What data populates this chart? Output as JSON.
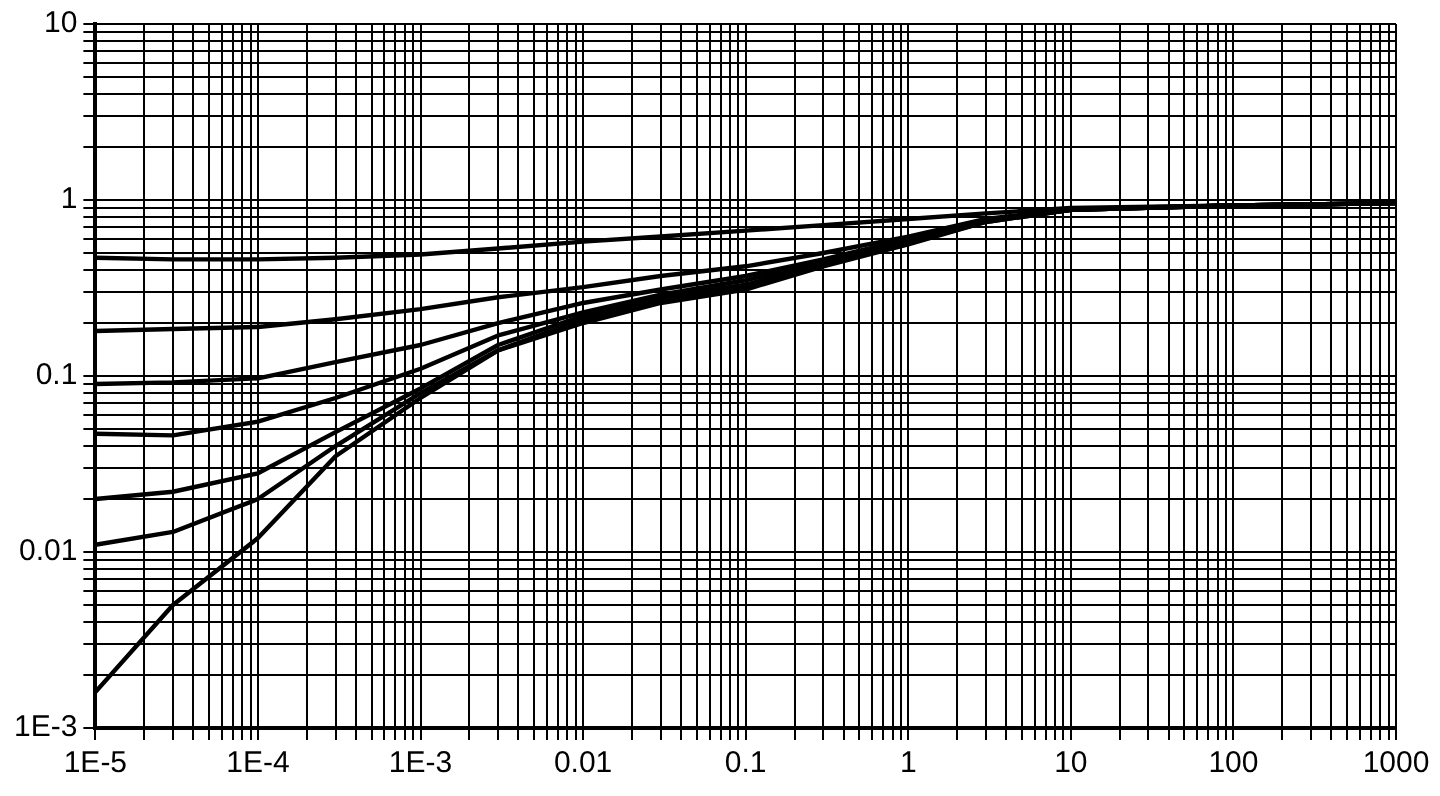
{
  "chart_data": {
    "type": "line",
    "log": "xy",
    "grid": true,
    "legend": false,
    "marker": "none",
    "line_style": "solid",
    "xlim": [
      1e-05,
      1000
    ],
    "ylim": [
      0.001,
      10
    ],
    "xticks": [
      {
        "value": 1e-05,
        "label": "1E-5"
      },
      {
        "value": 2e-05,
        "label": null
      },
      {
        "value": 3e-05,
        "label": null
      },
      {
        "value": 4e-05,
        "label": null
      },
      {
        "value": 5e-05,
        "label": null
      },
      {
        "value": 6e-05,
        "label": null
      },
      {
        "value": 7e-05,
        "label": null
      },
      {
        "value": 8e-05,
        "label": null
      },
      {
        "value": 9e-05,
        "label": null
      },
      {
        "value": 0.0001,
        "label": "1E-4"
      },
      {
        "value": 0.0002,
        "label": null
      },
      {
        "value": 0.0003,
        "label": null
      },
      {
        "value": 0.0004,
        "label": null
      },
      {
        "value": 0.0005,
        "label": null
      },
      {
        "value": 0.0006,
        "label": null
      },
      {
        "value": 0.0007,
        "label": null
      },
      {
        "value": 0.0008,
        "label": null
      },
      {
        "value": 0.0009,
        "label": null
      },
      {
        "value": 0.001,
        "label": "1E-3"
      },
      {
        "value": 0.002,
        "label": null
      },
      {
        "value": 0.003,
        "label": null
      },
      {
        "value": 0.004,
        "label": null
      },
      {
        "value": 0.005,
        "label": null
      },
      {
        "value": 0.006,
        "label": null
      },
      {
        "value": 0.007,
        "label": null
      },
      {
        "value": 0.008,
        "label": null
      },
      {
        "value": 0.009,
        "label": null
      },
      0.01,
      {
        "value": 0.02,
        "label": null
      },
      {
        "value": 0.03,
        "label": null
      },
      {
        "value": 0.04,
        "label": null
      },
      {
        "value": 0.05,
        "label": null
      },
      {
        "value": 0.06,
        "label": null
      },
      {
        "value": 0.07,
        "label": null
      },
      {
        "value": 0.08,
        "label": null
      },
      {
        "value": 0.09,
        "label": null
      },
      0.1,
      {
        "value": 0.2,
        "label": null
      },
      {
        "value": 0.3,
        "label": null
      },
      {
        "value": 0.4,
        "label": null
      },
      {
        "value": 0.5,
        "label": null
      },
      {
        "value": 0.6,
        "label": null
      },
      {
        "value": 0.7,
        "label": null
      },
      {
        "value": 0.8,
        "label": null
      },
      {
        "value": 0.9,
        "label": null
      },
      1,
      {
        "value": 2,
        "label": null
      },
      {
        "value": 3,
        "label": null
      },
      {
        "value": 4,
        "label": null
      },
      {
        "value": 5,
        "label": null
      },
      {
        "value": 6,
        "label": null
      },
      {
        "value": 7,
        "label": null
      },
      {
        "value": 8,
        "label": null
      },
      {
        "value": 9,
        "label": null
      },
      10,
      {
        "value": 20,
        "label": null
      },
      {
        "value": 30,
        "label": null
      },
      {
        "value": 40,
        "label": null
      },
      {
        "value": 50,
        "label": null
      },
      {
        "value": 60,
        "label": null
      },
      {
        "value": 70,
        "label": null
      },
      {
        "value": 80,
        "label": null
      },
      {
        "value": 90,
        "label": null
      },
      100,
      {
        "value": 200,
        "label": null
      },
      {
        "value": 300,
        "label": null
      },
      {
        "value": 400,
        "label": null
      },
      {
        "value": 500,
        "label": null
      },
      {
        "value": 600,
        "label": null
      },
      {
        "value": 700,
        "label": null
      },
      {
        "value": 800,
        "label": null
      },
      {
        "value": 900,
        "label": null
      },
      1000
    ],
    "yticks": [
      {
        "value": 0.001,
        "label": "1E-3"
      },
      {
        "value": 0.002,
        "label": null
      },
      {
        "value": 0.003,
        "label": null
      },
      {
        "value": 0.004,
        "label": null
      },
      {
        "value": 0.005,
        "label": null
      },
      {
        "value": 0.006,
        "label": null
      },
      {
        "value": 0.007,
        "label": null
      },
      {
        "value": 0.008,
        "label": null
      },
      {
        "value": 0.009,
        "label": null
      },
      0.01,
      {
        "value": 0.02,
        "label": null
      },
      {
        "value": 0.03,
        "label": null
      },
      {
        "value": 0.04,
        "label": null
      },
      {
        "value": 0.05,
        "label": null
      },
      {
        "value": 0.06,
        "label": null
      },
      {
        "value": 0.07,
        "label": null
      },
      {
        "value": 0.08,
        "label": null
      },
      {
        "value": 0.09,
        "label": null
      },
      0.1,
      {
        "value": 0.2,
        "label": null
      },
      {
        "value": 0.3,
        "label": null
      },
      {
        "value": 0.4,
        "label": null
      },
      {
        "value": 0.5,
        "label": null
      },
      {
        "value": 0.6,
        "label": null
      },
      {
        "value": 0.7,
        "label": null
      },
      {
        "value": 0.8,
        "label": null
      },
      {
        "value": 0.9,
        "label": null
      },
      1,
      {
        "value": 2,
        "label": null
      },
      {
        "value": 3,
        "label": null
      },
      {
        "value": 4,
        "label": null
      },
      {
        "value": 5,
        "label": null
      },
      {
        "value": 6,
        "label": null
      },
      {
        "value": 7,
        "label": null
      },
      {
        "value": 8,
        "label": null
      },
      {
        "value": 9,
        "label": null
      },
      10
    ],
    "x": [
      1e-05,
      3e-05,
      0.0001,
      0.0003,
      0.001,
      0.003,
      0.01,
      0.03,
      0.1,
      0.3,
      1,
      3,
      10,
      100,
      1000
    ],
    "series": [
      {
        "color": "#000000",
        "values": [
          0.47,
          0.46,
          0.46,
          0.47,
          0.49,
          0.53,
          0.58,
          0.62,
          0.67,
          0.72,
          0.78,
          0.84,
          0.9,
          0.93,
          0.96
        ]
      },
      {
        "color": "#000000",
        "values": [
          0.18,
          0.185,
          0.19,
          0.21,
          0.24,
          0.28,
          0.32,
          0.37,
          0.42,
          0.5,
          0.62,
          0.78,
          0.89,
          0.93,
          0.96
        ]
      },
      {
        "color": "#000000",
        "values": [
          0.09,
          0.092,
          0.097,
          0.12,
          0.15,
          0.2,
          0.26,
          0.31,
          0.37,
          0.46,
          0.6,
          0.77,
          0.88,
          0.93,
          0.96
        ]
      },
      {
        "color": "#000000",
        "values": [
          0.047,
          0.046,
          0.055,
          0.075,
          0.11,
          0.17,
          0.23,
          0.29,
          0.35,
          0.45,
          0.59,
          0.76,
          0.88,
          0.93,
          0.96
        ]
      },
      {
        "color": "#000000",
        "values": [
          0.02,
          0.022,
          0.028,
          0.048,
          0.085,
          0.15,
          0.22,
          0.28,
          0.33,
          0.44,
          0.58,
          0.76,
          0.88,
          0.93,
          0.96
        ]
      },
      {
        "color": "#000000",
        "values": [
          0.011,
          0.013,
          0.02,
          0.04,
          0.08,
          0.14,
          0.21,
          0.27,
          0.32,
          0.43,
          0.57,
          0.75,
          0.88,
          0.93,
          0.96
        ]
      },
      {
        "color": "#000000",
        "values": [
          0.0016,
          0.005,
          0.012,
          0.035,
          0.075,
          0.14,
          0.2,
          0.26,
          0.31,
          0.42,
          0.56,
          0.75,
          0.88,
          0.93,
          0.96
        ]
      }
    ]
  }
}
